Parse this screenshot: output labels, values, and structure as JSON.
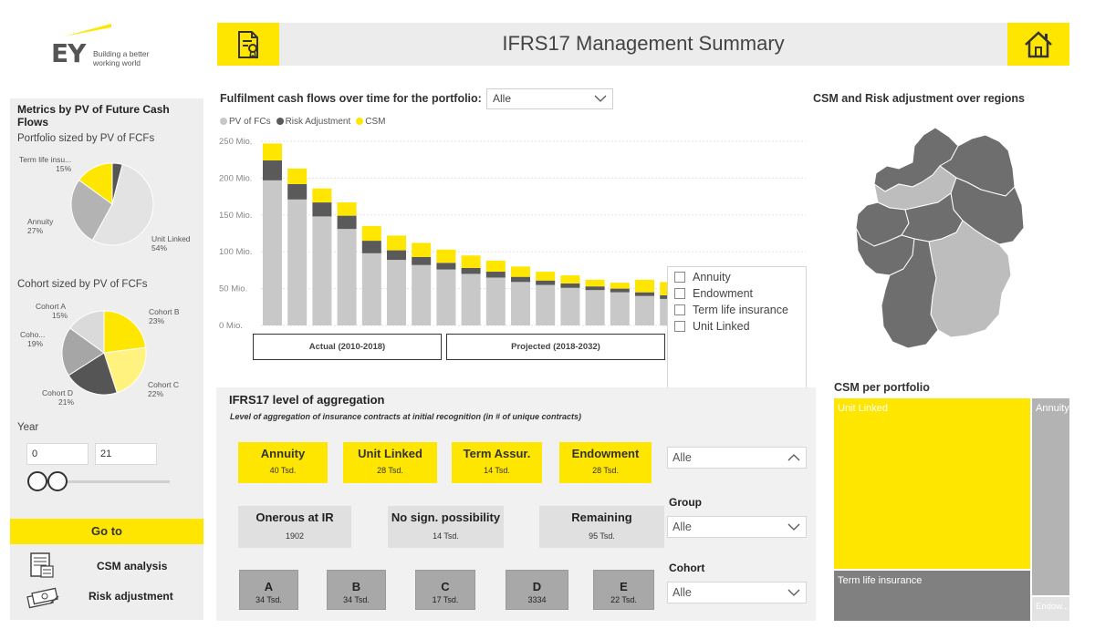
{
  "logo": {
    "brand": "EY",
    "tagline_1": "Building a better",
    "tagline_2": "working world"
  },
  "header": {
    "title": "IFRS17 Management Summary",
    "left_icon": "certificate-document-icon",
    "right_icon": "home-icon"
  },
  "left_panel": {
    "title": "Metrics by PV of Future Cash Flows",
    "portfolio_subtitle": "Portfolio sized by PV of FCFs",
    "portfolio_pie": [
      {
        "label": "Term life insu...",
        "pct": "15%",
        "value": 15,
        "color": "#ffe600"
      },
      {
        "label": "Annuity",
        "pct": "27%",
        "value": 27,
        "color": "#b3b3b3"
      },
      {
        "label": "Unit Linked",
        "pct": "54%",
        "value": 54,
        "color": "#e3e3e3"
      },
      {
        "label": "",
        "pct": "",
        "value": 4,
        "color": "#555555"
      }
    ],
    "cohort_subtitle": "Cohort sized by PV of FCFs",
    "cohort_pie": [
      {
        "label": "Cohort B",
        "pct": "23%",
        "value": 23,
        "color": "#ffe600"
      },
      {
        "label": "Cohort C",
        "pct": "22%",
        "value": 22,
        "color": "#fff27f"
      },
      {
        "label": "Cohort D",
        "pct": "21%",
        "value": 21,
        "color": "#555555"
      },
      {
        "label": "Coho...",
        "pct": "19%",
        "value": 19,
        "color": "#a6a6a6"
      },
      {
        "label": "Cohort A",
        "pct": "15%",
        "value": 15,
        "color": "#dadada"
      }
    ],
    "year_label": "Year",
    "year_from": "0",
    "year_to": "21",
    "goto_label": "Go to",
    "nav_csm": "CSM analysis",
    "nav_risk": "Risk adjustment"
  },
  "chart": {
    "title": "Fulfilment cash flows over time for the portfolio:",
    "filter_value": "Alle",
    "period_actual": "Actual (2010-2018)",
    "period_projected": "Projected (2018-2032)"
  },
  "chart_data": {
    "type": "bar",
    "stacked": true,
    "categories": [
      "",
      "",
      "",
      "",
      "",
      "",
      "",
      "",
      "",
      "",
      "",
      "",
      "",
      "",
      "",
      "",
      ""
    ],
    "series": [
      {
        "name": "PV of FCs",
        "color": "#c8c8c8",
        "values": [
          197,
          171,
          148,
          131,
          98,
          89,
          82,
          76,
          70,
          65,
          59,
          55,
          51,
          48,
          45,
          40,
          36
        ]
      },
      {
        "name": "Risk Adjustment",
        "color": "#5a5a5a",
        "values": [
          27,
          21,
          19,
          18,
          17,
          13,
          11,
          9,
          8,
          8,
          7,
          6,
          6,
          5,
          5,
          5,
          5
        ]
      },
      {
        "name": "CSM",
        "color": "#ffe600",
        "values": [
          23,
          21,
          19,
          18,
          20,
          20,
          19,
          18,
          17,
          15,
          14,
          12,
          11,
          9,
          8,
          17,
          18
        ]
      }
    ],
    "yticks": [
      "250 Mio.",
      "200 Mio.",
      "150 Mio.",
      "100 Mio.",
      "50 Mio.",
      "0 Mio."
    ],
    "ylim": [
      0,
      250
    ],
    "grid": true,
    "legend_position": "top-left"
  },
  "product_filter": [
    "Annuity",
    "Endowment",
    "Term life insurance",
    "Unit Linked"
  ],
  "aggregation": {
    "title": "IFRS17 level of aggregation",
    "subtitle": "Level of aggregation of insurance contracts at initial recognition (in # of unique contracts)",
    "products": [
      {
        "name": "Annuity",
        "value": "40 Tsd."
      },
      {
        "name": "Unit Linked",
        "value": "28 Tsd."
      },
      {
        "name": "Term Assur.",
        "value": "14 Tsd."
      },
      {
        "name": "Endowment",
        "value": "28 Tsd."
      }
    ],
    "groups": [
      {
        "name": "Onerous at IR",
        "value": "1902"
      },
      {
        "name": "No sign. possibility",
        "value": "14 Tsd."
      },
      {
        "name": "Remaining",
        "value": "95 Tsd."
      }
    ],
    "cohorts": [
      {
        "name": "A",
        "value": "34 Tsd."
      },
      {
        "name": "B",
        "value": "34 Tsd."
      },
      {
        "name": "C",
        "value": "17 Tsd."
      },
      {
        "name": "D",
        "value": "3334"
      },
      {
        "name": "E",
        "value": "22 Tsd."
      }
    ]
  },
  "slicers": {
    "product_value": "Alle",
    "group_label": "Group",
    "group_value": "Alle",
    "cohort_label": "Cohort",
    "cohort_value": "Alle"
  },
  "map": {
    "title": "CSM and Risk adjustment over regions"
  },
  "treemap": {
    "title": "CSM per portfolio",
    "cells": [
      {
        "name": "Unit Linked",
        "color": "#ffe600"
      },
      {
        "name": "Annuity",
        "color": "#b3b3b3"
      },
      {
        "name": "Term life insurance",
        "color": "#808080"
      },
      {
        "name": "Endow...",
        "color": "#e3e3e3"
      }
    ]
  },
  "colors": {
    "accent": "#ffe600",
    "panel": "#eeeeee"
  }
}
